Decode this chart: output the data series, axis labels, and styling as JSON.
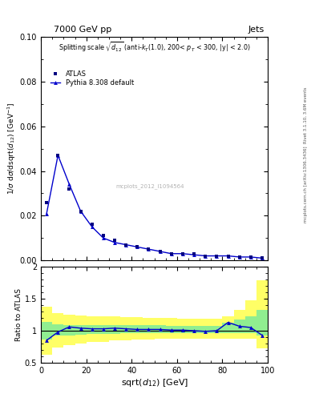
{
  "title_top": "7000 GeV pp",
  "title_right": "Jets",
  "rivet_label": "Rivet 3.1.10, 3.6M events",
  "mcplots_label": "mcplots.cern.ch [arXiv:1306.3436]",
  "watermark_data": "mcplots_2012_I1094564",
  "ylabel_main": "1/σ dσ/dsqrt(d_{12}) [GeV⁻¹]",
  "ylabel_ratio": "Ratio to ATLAS",
  "xlabel": "sqrt(d_{12}) [GeV]",
  "xlim": [
    0,
    100
  ],
  "ylim_main": [
    0,
    0.1
  ],
  "ylim_ratio": [
    0.5,
    2.0
  ],
  "main_data_x": [
    2.5,
    7.5,
    12.5,
    17.5,
    22.5,
    27.5,
    32.5,
    37.5,
    42.5,
    47.5,
    52.5,
    57.5,
    62.5,
    67.5,
    72.5,
    77.5,
    82.5,
    87.5,
    92.5,
    97.5
  ],
  "atlas_y": [
    0.026,
    0.047,
    0.032,
    0.022,
    0.016,
    0.011,
    0.009,
    0.007,
    0.006,
    0.005,
    0.004,
    0.003,
    0.003,
    0.003,
    0.002,
    0.002,
    0.002,
    0.0015,
    0.0015,
    0.001
  ],
  "pythia_y": [
    0.021,
    0.047,
    0.034,
    0.022,
    0.015,
    0.01,
    0.008,
    0.007,
    0.006,
    0.005,
    0.004,
    0.003,
    0.003,
    0.0025,
    0.002,
    0.002,
    0.002,
    0.0015,
    0.0015,
    0.001
  ],
  "ratio_y": [
    0.85,
    0.98,
    1.06,
    1.04,
    1.03,
    1.03,
    1.04,
    1.03,
    1.02,
    1.02,
    1.02,
    1.01,
    1.01,
    1.0,
    0.99,
    1.0,
    1.13,
    1.07,
    1.05,
    0.93
  ],
  "green_lo": [
    0.86,
    0.92,
    0.93,
    0.94,
    0.95,
    0.95,
    0.95,
    0.96,
    0.96,
    0.96,
    0.96,
    0.96,
    0.96,
    0.96,
    0.96,
    0.96,
    0.96,
    0.96,
    0.96,
    0.92
  ],
  "green_hi": [
    1.14,
    1.1,
    1.09,
    1.09,
    1.09,
    1.09,
    1.09,
    1.09,
    1.09,
    1.09,
    1.09,
    1.08,
    1.08,
    1.08,
    1.08,
    1.08,
    1.12,
    1.18,
    1.22,
    1.32
  ],
  "yellow_lo": [
    0.62,
    0.74,
    0.78,
    0.8,
    0.82,
    0.83,
    0.85,
    0.85,
    0.86,
    0.86,
    0.87,
    0.87,
    0.88,
    0.88,
    0.88,
    0.88,
    0.88,
    0.88,
    0.87,
    0.72
  ],
  "yellow_hi": [
    1.38,
    1.28,
    1.25,
    1.24,
    1.23,
    1.23,
    1.22,
    1.21,
    1.21,
    1.2,
    1.2,
    1.2,
    1.19,
    1.19,
    1.19,
    1.19,
    1.23,
    1.32,
    1.48,
    1.78
  ],
  "line_color": "#0000cc",
  "atlas_color": "#000080",
  "bg_color": "#ffffff",
  "green_color": "#90ee90",
  "yellow_color": "#ffff66"
}
